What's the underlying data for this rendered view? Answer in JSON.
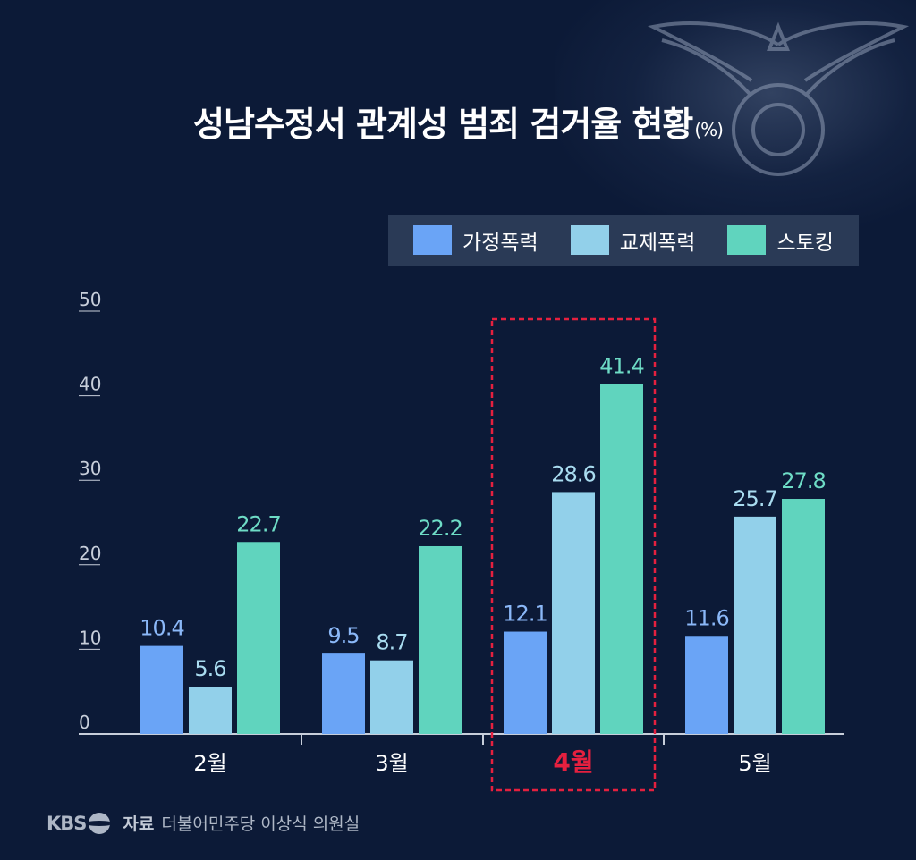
{
  "title": {
    "text": "성남수정서 관계성 범죄 검거율 현황",
    "unit": "(%)"
  },
  "colors": {
    "background": "#0c1a37",
    "highlight": "#e5203f"
  },
  "chart_data": {
    "type": "bar",
    "title": "성남수정서 관계성 범죄 검거율 현황(%)",
    "categories": [
      "2월",
      "3월",
      "4월",
      "5월"
    ],
    "highlight_category": "4월",
    "yticks": [
      0,
      10,
      20,
      30,
      40,
      50
    ],
    "ylim": [
      0,
      50
    ],
    "series": [
      {
        "name": "가정폭력",
        "color": "#6aa4f6",
        "label_color": "#8bb8f8",
        "values": [
          10.4,
          9.5,
          12.1,
          11.6
        ]
      },
      {
        "name": "교제폭력",
        "color": "#92d0ea",
        "label_color": "#a9dcf0",
        "values": [
          5.6,
          8.7,
          28.6,
          25.7
        ]
      },
      {
        "name": "스토킹",
        "color": "#60d4be",
        "label_color": "#6edcc6",
        "values": [
          22.7,
          22.2,
          41.4,
          27.8
        ]
      }
    ],
    "legend_position": "top-right",
    "grid": false
  },
  "footer": {
    "logo": "KBS",
    "source_label": "자료",
    "source_text": "더불어민주당 이상식 의원실"
  }
}
